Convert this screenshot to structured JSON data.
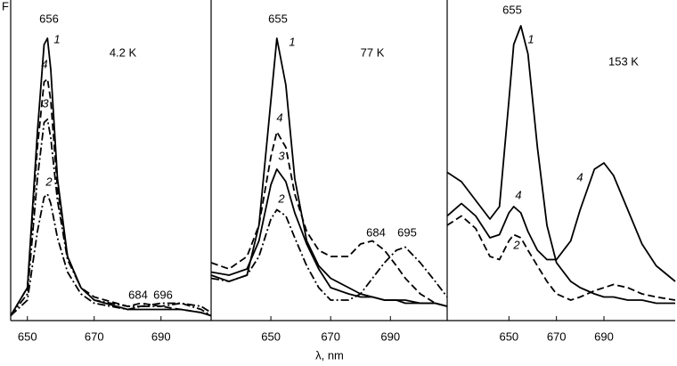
{
  "figure_label": "F",
  "xlabel": "λ, nm",
  "chart_data": [
    {
      "type": "line",
      "title": "4.2 K",
      "xlim": [
        645,
        705
      ],
      "ylim": [
        0,
        100
      ],
      "xticks": [
        650,
        670,
        690
      ],
      "grid": false,
      "annotations": [
        "656",
        "684",
        "696"
      ],
      "x": [
        645,
        650,
        653,
        655,
        656,
        657,
        659,
        662,
        666,
        670,
        680,
        684,
        690,
        696,
        702,
        705
      ],
      "series": [
        {
          "name": "1",
          "color": "#000000",
          "dash": "solid",
          "values": [
            1,
            10,
            60,
            88,
            90,
            80,
            45,
            20,
            10,
            6,
            3,
            3,
            3,
            3,
            2,
            1
          ]
        },
        {
          "name": "4",
          "color": "#000000",
          "dash": "dashed",
          "values": [
            1,
            10,
            55,
            76,
            77,
            70,
            42,
            20,
            10,
            7,
            4,
            5,
            4,
            3,
            2,
            1
          ]
        },
        {
          "name": "3",
          "color": "#000000",
          "dash": "dashdot",
          "values": [
            1,
            8,
            45,
            63,
            64,
            58,
            38,
            19,
            10,
            6,
            4,
            4,
            5,
            5,
            3,
            1
          ]
        },
        {
          "name": "2",
          "color": "#000000",
          "dash": "dashdot",
          "values": [
            1,
            6,
            28,
            39,
            40,
            37,
            26,
            15,
            8,
            5,
            3,
            4,
            4,
            5,
            4,
            2
          ]
        }
      ]
    },
    {
      "type": "line",
      "title": "77 K",
      "xlim": [
        630,
        709
      ],
      "ylim": [
        0,
        100
      ],
      "xticks": [
        650,
        670,
        690
      ],
      "grid": false,
      "annotations": [
        "655",
        "684",
        "695"
      ],
      "x": [
        630,
        636,
        642,
        646,
        650,
        652,
        655,
        658,
        662,
        666,
        670,
        676,
        680,
        684,
        688,
        692,
        695,
        700,
        705,
        709
      ],
      "series": [
        {
          "name": "1",
          "color": "#000000",
          "dash": "solid",
          "values": [
            14,
            12,
            14,
            30,
            70,
            90,
            75,
            45,
            25,
            17,
            13,
            10,
            8,
            7,
            6,
            6,
            5,
            5,
            5,
            4
          ]
        },
        {
          "name": "4",
          "color": "#000000",
          "dash": "dashed",
          "values": [
            18,
            16,
            20,
            30,
            52,
            60,
            55,
            40,
            28,
            22,
            20,
            20,
            24,
            25,
            22,
            17,
            13,
            8,
            5,
            4
          ]
        },
        {
          "name": "3",
          "color": "#000000",
          "dash": "solid",
          "values": [
            15,
            14,
            16,
            25,
            43,
            48,
            44,
            34,
            24,
            16,
            10,
            8,
            7,
            7,
            6,
            6,
            6,
            5,
            5,
            4
          ]
        },
        {
          "name": "2",
          "color": "#000000",
          "dash": "dashdot",
          "values": [
            13,
            12,
            14,
            20,
            32,
            35,
            33,
            26,
            17,
            10,
            6,
            6,
            8,
            13,
            18,
            22,
            23,
            18,
            12,
            7
          ]
        }
      ]
    },
    {
      "type": "line",
      "title": "153 K",
      "xlim": [
        624,
        720
      ],
      "ylim": [
        0,
        100
      ],
      "xticks": [
        650,
        670,
        690
      ],
      "grid": false,
      "annotations": [
        "655"
      ],
      "x": [
        624,
        630,
        636,
        642,
        646,
        650,
        652,
        655,
        658,
        662,
        666,
        670,
        676,
        680,
        686,
        690,
        694,
        700,
        706,
        712,
        720
      ],
      "series": [
        {
          "name": "1",
          "color": "#000000",
          "dash": "solid",
          "values": [
            47,
            44,
            38,
            32,
            36,
            70,
            88,
            94,
            85,
            55,
            30,
            18,
            12,
            10,
            8,
            7,
            7,
            6,
            6,
            5,
            5
          ]
        },
        {
          "name": "4",
          "color": "#000000",
          "dash": "solid",
          "values": [
            33,
            37,
            33,
            26,
            27,
            34,
            36,
            34,
            28,
            22,
            19,
            19,
            25,
            35,
            48,
            50,
            46,
            35,
            24,
            17,
            12
          ]
        },
        {
          "name": "2",
          "color": "#000000",
          "dash": "dashed",
          "values": [
            30,
            33,
            29,
            20,
            19,
            25,
            27,
            26,
            22,
            17,
            12,
            8,
            6,
            7,
            9,
            10,
            11,
            10,
            8,
            7,
            6
          ]
        }
      ]
    }
  ]
}
